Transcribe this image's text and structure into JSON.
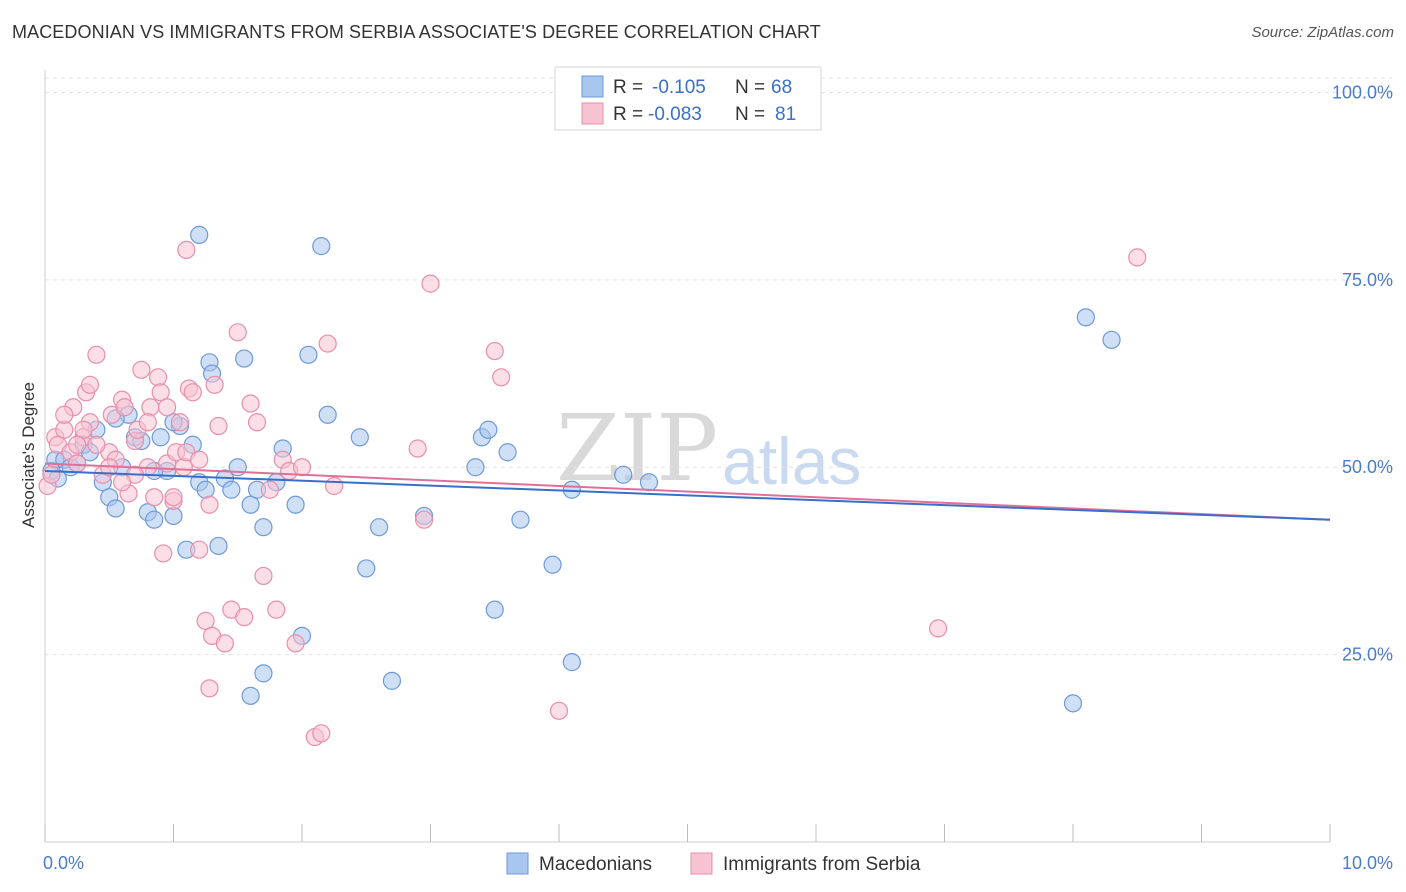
{
  "title": "MACEDONIAN VS IMMIGRANTS FROM SERBIA ASSOCIATE'S DEGREE CORRELATION CHART",
  "source": "Source: ZipAtlas.com",
  "watermark": {
    "zip": "ZIP",
    "atlas": "atlas"
  },
  "legend": {
    "rows": [
      {
        "r_label": "R =",
        "r_value": "-0.105",
        "n_label": "N =",
        "n_value": "68",
        "color": "#a8c6ef",
        "stroke": "#6f9ad8"
      },
      {
        "r_label": "R =",
        "r_value": "-0.083",
        "n_label": "N =",
        "n_value": "81",
        "color": "#f7c2d2",
        "stroke": "#e88fab"
      }
    ]
  },
  "bottom_legend": [
    "Macedonians",
    "Immigrants from Serbia"
  ],
  "chart_data": {
    "type": "scatter",
    "title": "MACEDONIAN VS IMMIGRANTS FROM SERBIA ASSOCIATE'S DEGREE CORRELATION CHART",
    "xlabel": "",
    "ylabel": "Associate's Degree",
    "xlim": [
      0,
      10
    ],
    "ylim": [
      0,
      103
    ],
    "x_tick_labels": [
      {
        "value": 0,
        "label": "0.0%"
      },
      {
        "value": 10,
        "label": "10.0%"
      }
    ],
    "y_tick_labels": [
      {
        "value": 100,
        "label": "100.0%"
      },
      {
        "value": 75,
        "label": "75.0%"
      },
      {
        "value": 50,
        "label": "50.0%"
      },
      {
        "value": 25,
        "label": "25.0%"
      }
    ],
    "y_gridlines": [
      100,
      75,
      50,
      25
    ],
    "series": [
      {
        "name": "Macedonians",
        "color": "#a8c6ef",
        "stroke": "#6f9ad8",
        "trend": {
          "x0": 0.0,
          "y0": 49.5,
          "x1": 10.0,
          "y1": 43.0,
          "color": "#3a6fc9"
        },
        "points": [
          [
            0.05,
            49.5
          ],
          [
            0.08,
            51
          ],
          [
            0.1,
            48.5
          ],
          [
            0.15,
            51
          ],
          [
            0.2,
            50
          ],
          [
            0.25,
            50.5
          ],
          [
            0.3,
            53
          ],
          [
            0.35,
            52
          ],
          [
            0.4,
            55
          ],
          [
            0.45,
            48
          ],
          [
            0.5,
            46
          ],
          [
            0.55,
            44.5
          ],
          [
            0.6,
            50
          ],
          [
            0.65,
            57
          ],
          [
            0.7,
            54
          ],
          [
            0.75,
            53.5
          ],
          [
            0.8,
            44
          ],
          [
            0.85,
            43
          ],
          [
            0.9,
            54
          ],
          [
            0.95,
            49.5
          ],
          [
            1.0,
            43.5
          ],
          [
            1.05,
            55.5
          ],
          [
            1.1,
            39
          ],
          [
            1.15,
            53
          ],
          [
            1.2,
            48
          ],
          [
            1.25,
            47
          ],
          [
            1.28,
            64
          ],
          [
            1.3,
            62.5
          ],
          [
            1.35,
            39.5
          ],
          [
            1.4,
            48.5
          ],
          [
            1.45,
            47
          ],
          [
            1.5,
            50
          ],
          [
            1.55,
            64.5
          ],
          [
            1.6,
            45
          ],
          [
            1.65,
            47
          ],
          [
            1.7,
            42
          ],
          [
            1.8,
            48
          ],
          [
            1.85,
            52.5
          ],
          [
            1.95,
            45
          ],
          [
            2.0,
            27.5
          ],
          [
            2.05,
            65
          ],
          [
            2.15,
            79.5
          ],
          [
            2.2,
            57
          ],
          [
            1.2,
            81
          ],
          [
            2.45,
            54
          ],
          [
            2.5,
            36.5
          ],
          [
            2.6,
            42
          ],
          [
            2.7,
            21.5
          ],
          [
            2.95,
            43.5
          ],
          [
            3.35,
            50
          ],
          [
            3.4,
            54
          ],
          [
            3.45,
            55
          ],
          [
            3.5,
            31
          ],
          [
            3.6,
            52
          ],
          [
            3.7,
            43
          ],
          [
            3.95,
            37
          ],
          [
            4.1,
            47
          ],
          [
            4.1,
            24
          ],
          [
            4.5,
            49
          ],
          [
            4.7,
            48
          ],
          [
            1.7,
            22.5
          ],
          [
            1.6,
            19.5
          ],
          [
            8.0,
            18.5
          ],
          [
            8.1,
            70
          ],
          [
            8.3,
            67
          ],
          [
            0.55,
            56.5
          ],
          [
            0.85,
            49.5
          ],
          [
            1.0,
            56
          ]
        ],
        "sizes_note": "uniform"
      },
      {
        "name": "Immigrants from Serbia",
        "color": "#f7c2d2",
        "stroke": "#e88fab",
        "trend": {
          "x0": 0.0,
          "y0": 50.5,
          "x1": 10.0,
          "y1": 43.0,
          "color": "#e0709a"
        },
        "points": [
          [
            0.02,
            47.5
          ],
          [
            0.05,
            49
          ],
          [
            0.08,
            54
          ],
          [
            0.1,
            53
          ],
          [
            0.15,
            55
          ],
          [
            0.2,
            52
          ],
          [
            0.22,
            58
          ],
          [
            0.25,
            50.5
          ],
          [
            0.3,
            54
          ],
          [
            0.32,
            60
          ],
          [
            0.35,
            56
          ],
          [
            0.4,
            65
          ],
          [
            0.45,
            49
          ],
          [
            0.5,
            52
          ],
          [
            0.52,
            57
          ],
          [
            0.55,
            51
          ],
          [
            0.6,
            59
          ],
          [
            0.62,
            58
          ],
          [
            0.65,
            46.5
          ],
          [
            0.7,
            53.5
          ],
          [
            0.72,
            55
          ],
          [
            0.75,
            63
          ],
          [
            0.8,
            50
          ],
          [
            0.82,
            58
          ],
          [
            0.85,
            46
          ],
          [
            0.88,
            62
          ],
          [
            0.9,
            60
          ],
          [
            0.92,
            38.5
          ],
          [
            0.95,
            50.5
          ],
          [
            1.0,
            45.5
          ],
          [
            1.02,
            52
          ],
          [
            1.05,
            56
          ],
          [
            1.08,
            50
          ],
          [
            1.1,
            79
          ],
          [
            1.12,
            60.5
          ],
          [
            1.15,
            60
          ],
          [
            1.2,
            39
          ],
          [
            1.25,
            29.5
          ],
          [
            1.28,
            45
          ],
          [
            1.3,
            27.5
          ],
          [
            1.32,
            61
          ],
          [
            1.35,
            55.5
          ],
          [
            1.4,
            26.5
          ],
          [
            1.45,
            31
          ],
          [
            1.5,
            68
          ],
          [
            1.55,
            30
          ],
          [
            1.6,
            58.5
          ],
          [
            1.65,
            56
          ],
          [
            1.7,
            35.5
          ],
          [
            1.75,
            47
          ],
          [
            1.8,
            31
          ],
          [
            1.85,
            51
          ],
          [
            1.9,
            49.5
          ],
          [
            1.95,
            26.5
          ],
          [
            2.0,
            50
          ],
          [
            2.1,
            14
          ],
          [
            2.15,
            14.5
          ],
          [
            2.2,
            66.5
          ],
          [
            2.25,
            47.5
          ],
          [
            1.28,
            20.5
          ],
          [
            2.9,
            52.5
          ],
          [
            2.95,
            43
          ],
          [
            3.0,
            74.5
          ],
          [
            3.5,
            65.5
          ],
          [
            3.55,
            62
          ],
          [
            4.0,
            17.5
          ],
          [
            6.95,
            28.5
          ],
          [
            8.5,
            78
          ],
          [
            0.3,
            55
          ],
          [
            0.5,
            50
          ],
          [
            0.7,
            49
          ],
          [
            0.95,
            58
          ],
          [
            1.1,
            52
          ],
          [
            0.4,
            53
          ],
          [
            0.6,
            48
          ],
          [
            0.8,
            56
          ],
          [
            1.0,
            46
          ],
          [
            0.35,
            61
          ],
          [
            0.15,
            57
          ],
          [
            0.25,
            53
          ],
          [
            1.2,
            51
          ]
        ],
        "sizes_note": "uniform"
      }
    ]
  }
}
